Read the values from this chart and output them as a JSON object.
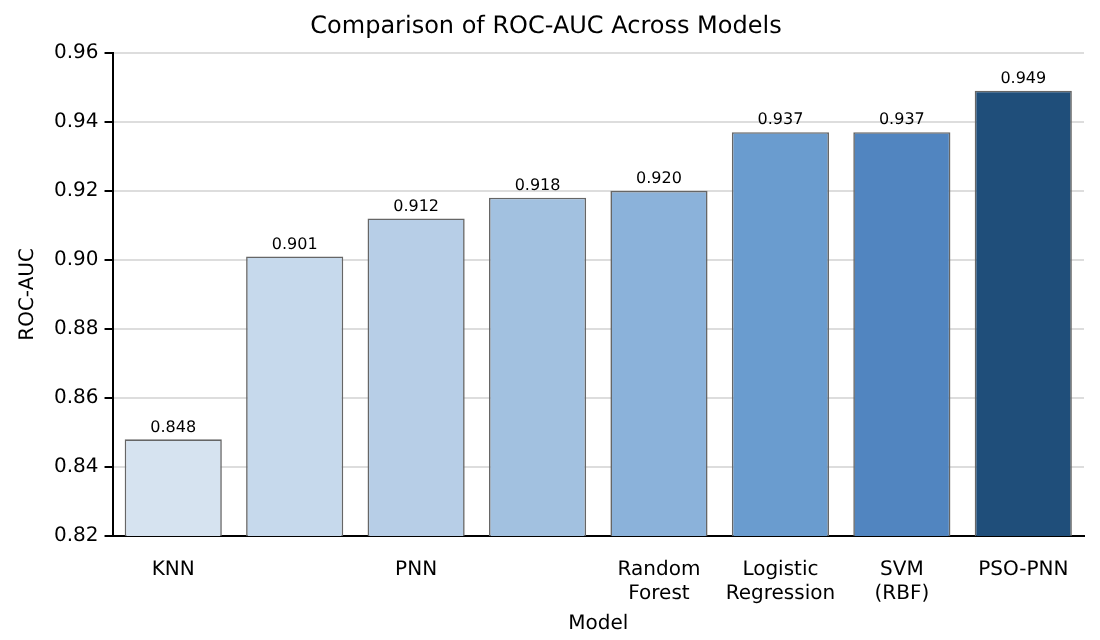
{
  "chart_data": {
    "type": "bar",
    "title": "Comparison of ROC-AUC Across Models",
    "xlabel": "Model",
    "ylabel": "ROC-AUC",
    "categories": [
      "KNN",
      null,
      "PNN",
      null,
      "Random Forest",
      "Logistic Regression",
      "SVM (RBF)",
      "PSO-PNN"
    ],
    "values": [
      0.848,
      0.901,
      0.912,
      0.918,
      0.92,
      0.937,
      0.937,
      0.949
    ],
    "colors": [
      "#d6e3f0",
      "#c6d9ec",
      "#b7cee7",
      "#a2c1e0",
      "#8bb2da",
      "#6a9ccf",
      "#5185c0",
      "#1f4e7a"
    ],
    "value_labels": [
      "0.848",
      "0.901",
      "0.912",
      "0.918",
      "0.920",
      "0.937",
      "0.937",
      "0.949"
    ],
    "ylim": [
      0.82,
      0.96
    ],
    "yticks": [
      0.82,
      0.84,
      0.86,
      0.88,
      {
        "value": 0.9,
        "label": "0.90"
      },
      0.92,
      0.94,
      0.96
    ],
    "grid": "y"
  }
}
